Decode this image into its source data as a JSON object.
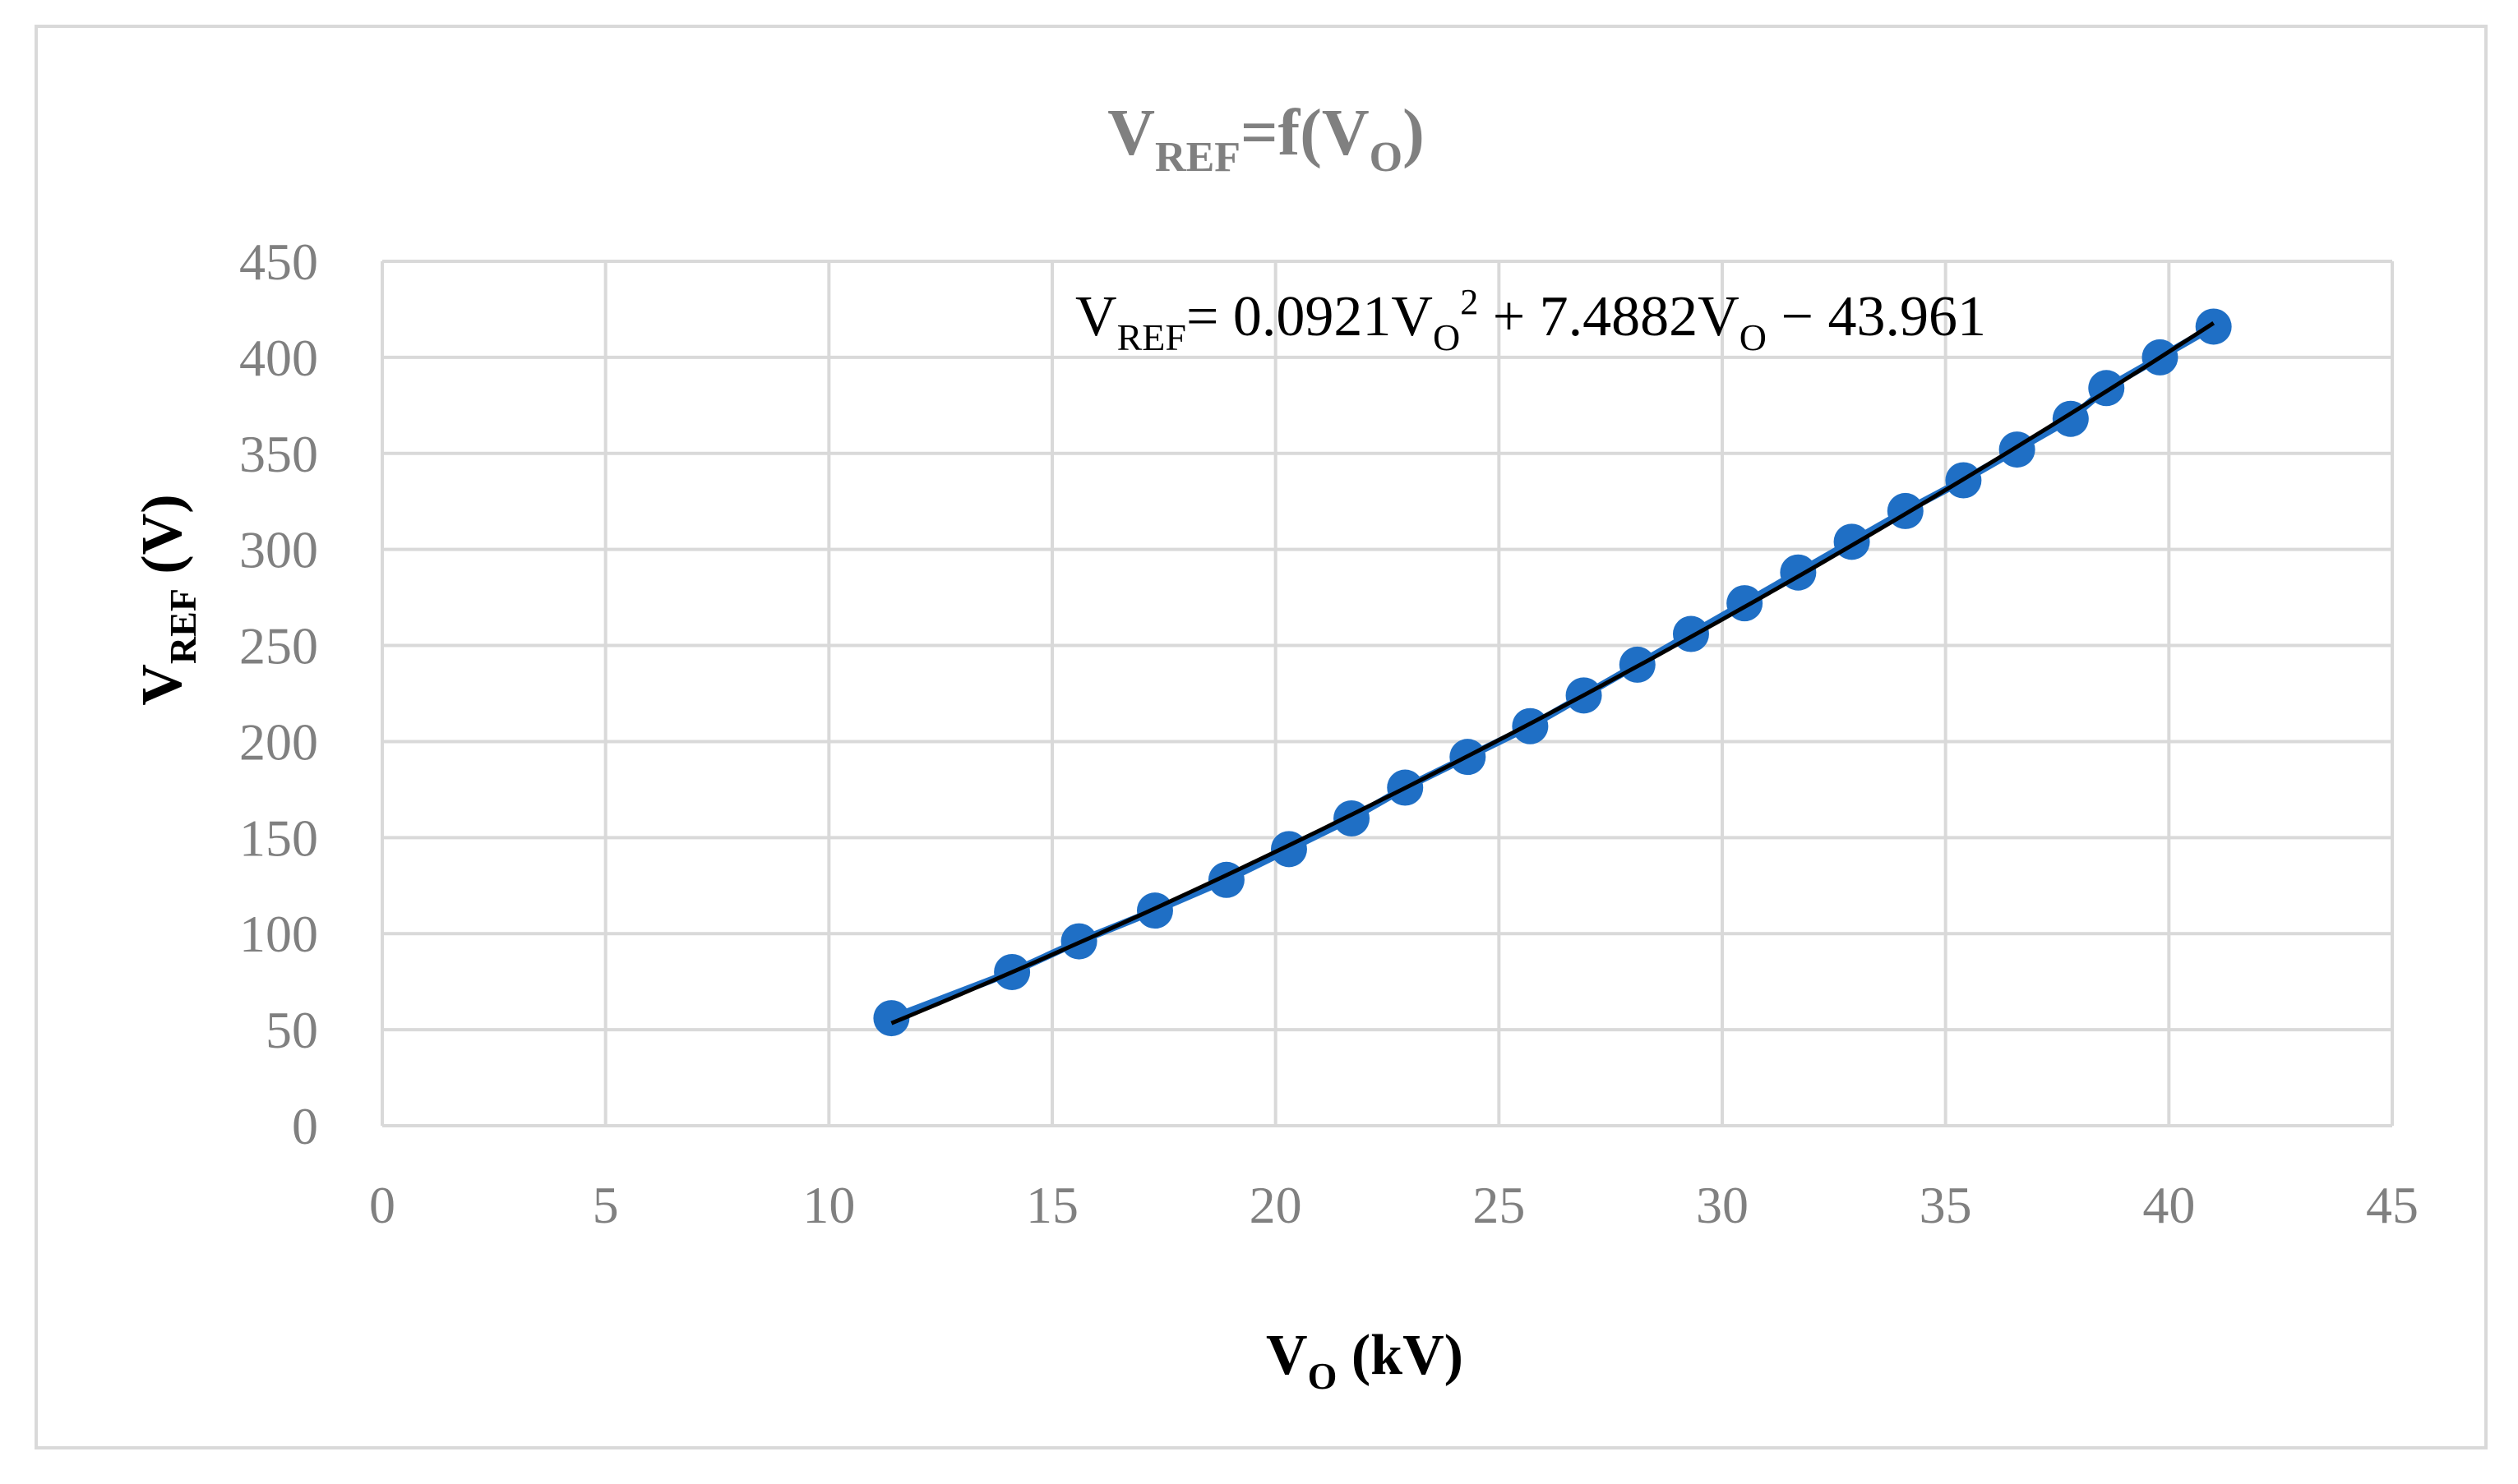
{
  "chart_data": {
    "type": "scatter",
    "title": {
      "main": "V",
      "sub1": "REF",
      "mid": "=f(V",
      "sub2": "O",
      "end": ")"
    },
    "xlabel": {
      "main": "V",
      "sub": "O",
      "unit": " (kV)"
    },
    "ylabel": {
      "main": "V",
      "sub": "REF",
      "unit": " (V)"
    },
    "equation": {
      "p1": "V",
      "s1": "REF",
      "p2": "= 0.0921V",
      "s2": "O",
      "sup": "2",
      "p3": " + 7.4882V",
      "s3": "O",
      "p4": " − 43.961"
    },
    "xlim": [
      0,
      45
    ],
    "ylim": [
      0,
      450
    ],
    "x_ticks": [
      "0",
      "5",
      "10",
      "15",
      "20",
      "25",
      "30",
      "35",
      "40",
      "45"
    ],
    "y_ticks": [
      "0",
      "50",
      "100",
      "150",
      "200",
      "250",
      "300",
      "350",
      "400",
      "450"
    ],
    "grid": true,
    "legend": "none",
    "series": [
      {
        "x": [
          11.4,
          14.1,
          15.6,
          17.3,
          18.9,
          20.3,
          21.7,
          22.9,
          24.3,
          25.7,
          26.9,
          28.1,
          29.3,
          30.5,
          31.7,
          32.9,
          34.1,
          35.4,
          36.6,
          37.8,
          38.6,
          39.8,
          41.0
        ],
        "y": [
          56,
          80,
          96,
          112,
          128,
          144,
          160,
          176,
          192,
          208,
          224,
          240,
          256,
          272,
          288,
          304,
          320,
          336,
          352,
          368,
          384,
          400,
          416
        ]
      }
    ],
    "trendline": {
      "type": "polynomial",
      "order": 2,
      "coefficients": [
        0.0921,
        7.4882,
        -43.961
      ],
      "x_range": [
        11.4,
        41.0
      ]
    },
    "colors": {
      "marker": "#1f6fc5",
      "trendline": "#000000",
      "grid": "#d9d9d9",
      "text": "#808080"
    }
  }
}
